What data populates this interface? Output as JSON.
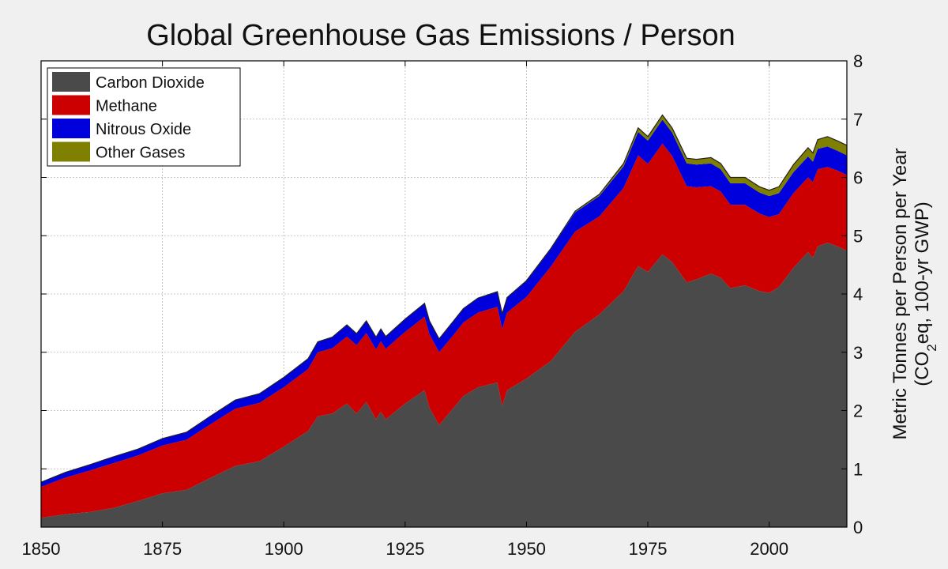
{
  "chart_data": {
    "type": "area",
    "title": "Global Greenhouse Gas Emissions / Person",
    "ylabel_line1": "Metric Tonnes per Person per Year",
    "ylabel_line2_pre": "(CO",
    "ylabel_line2_sub": "2",
    "ylabel_line2_post": "eq, 100-yr GWP)",
    "xlim": [
      1850,
      2016
    ],
    "ylim": [
      0,
      8
    ],
    "x_ticks": [
      "1850",
      "1875",
      "1900",
      "1925",
      "1950",
      "1975",
      "2000"
    ],
    "y_ticks": [
      "0",
      "1",
      "2",
      "3",
      "4",
      "5",
      "6",
      "7",
      "8"
    ],
    "grid": true,
    "legend_position": "top-left",
    "stacking": "cumulative",
    "x": [
      1850,
      1855,
      1860,
      1865,
      1870,
      1875,
      1880,
      1885,
      1890,
      1895,
      1900,
      1905,
      1907,
      1910,
      1913,
      1915,
      1917,
      1919,
      1920,
      1921,
      1925,
      1929,
      1930,
      1932,
      1935,
      1937,
      1940,
      1944,
      1945,
      1946,
      1950,
      1955,
      1960,
      1965,
      1970,
      1973,
      1975,
      1978,
      1980,
      1983,
      1985,
      1988,
      1990,
      1992,
      1995,
      1998,
      2000,
      2002,
      2005,
      2008,
      2009,
      2010,
      2012,
      2014,
      2016
    ],
    "series": [
      {
        "name": "Carbon Dioxide",
        "color": "#4a4a4a",
        "values": [
          0.16,
          0.22,
          0.26,
          0.33,
          0.45,
          0.58,
          0.64,
          0.85,
          1.05,
          1.13,
          1.38,
          1.65,
          1.9,
          1.95,
          2.12,
          1.95,
          2.15,
          1.85,
          1.98,
          1.85,
          2.12,
          2.35,
          2.05,
          1.75,
          2.05,
          2.25,
          2.4,
          2.48,
          2.08,
          2.35,
          2.55,
          2.85,
          3.35,
          3.65,
          4.05,
          4.48,
          4.38,
          4.68,
          4.55,
          4.2,
          4.25,
          4.35,
          4.28,
          4.1,
          4.15,
          4.05,
          4.02,
          4.12,
          4.45,
          4.72,
          4.62,
          4.82,
          4.88,
          4.82,
          4.74
        ]
      },
      {
        "name": "Methane",
        "color": "#cc0000",
        "values": [
          0.53,
          0.63,
          0.71,
          0.77,
          0.78,
          0.82,
          0.86,
          0.92,
          0.98,
          1.0,
          1.02,
          1.06,
          1.1,
          1.12,
          1.15,
          1.17,
          1.18,
          1.2,
          1.21,
          1.21,
          1.23,
          1.26,
          1.26,
          1.25,
          1.25,
          1.26,
          1.28,
          1.3,
          1.32,
          1.33,
          1.4,
          1.62,
          1.72,
          1.68,
          1.77,
          1.9,
          1.85,
          1.9,
          1.82,
          1.65,
          1.58,
          1.5,
          1.48,
          1.43,
          1.38,
          1.33,
          1.3,
          1.25,
          1.28,
          1.28,
          1.3,
          1.32,
          1.3,
          1.3,
          1.3
        ]
      },
      {
        "name": "Nitrous Oxide",
        "color": "#0000dd",
        "values": [
          0.08,
          0.09,
          0.1,
          0.11,
          0.11,
          0.12,
          0.13,
          0.14,
          0.15,
          0.16,
          0.17,
          0.18,
          0.18,
          0.19,
          0.2,
          0.2,
          0.21,
          0.21,
          0.21,
          0.21,
          0.22,
          0.23,
          0.23,
          0.23,
          0.24,
          0.24,
          0.25,
          0.26,
          0.26,
          0.26,
          0.27,
          0.3,
          0.33,
          0.35,
          0.37,
          0.4,
          0.4,
          0.41,
          0.4,
          0.39,
          0.39,
          0.39,
          0.38,
          0.37,
          0.37,
          0.36,
          0.36,
          0.36,
          0.36,
          0.36,
          0.35,
          0.35,
          0.35,
          0.34,
          0.34
        ]
      },
      {
        "name": "Other Gases",
        "color": "#808000",
        "values": [
          0,
          0,
          0,
          0,
          0,
          0,
          0,
          0,
          0,
          0,
          0,
          0,
          0,
          0,
          0,
          0,
          0,
          0,
          0,
          0,
          0,
          0,
          0,
          0,
          0,
          0,
          0,
          0,
          0,
          0,
          0.01,
          0.01,
          0.02,
          0.03,
          0.05,
          0.07,
          0.07,
          0.08,
          0.08,
          0.09,
          0.09,
          0.1,
          0.1,
          0.1,
          0.1,
          0.1,
          0.1,
          0.11,
          0.13,
          0.15,
          0.15,
          0.16,
          0.17,
          0.17,
          0.17
        ]
      }
    ]
  }
}
